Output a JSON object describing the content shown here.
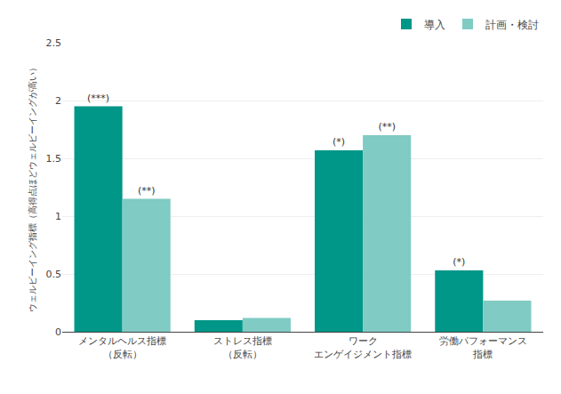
{
  "chart_data": {
    "type": "bar",
    "categories": [
      "メンタルヘルス指標\n（反転）",
      "ストレス指標\n（反転）",
      "ワーク\nエンゲイジメント指標",
      "労働パフォーマンス\n指標"
    ],
    "series": [
      {
        "name": "導入",
        "color": "#009688",
        "values": [
          1.95,
          0.1,
          1.57,
          0.53
        ],
        "annotations": [
          "(***)",
          null,
          "(*)",
          "(*)"
        ]
      },
      {
        "name": "計画・検討",
        "color": "#80CBC4",
        "values": [
          1.15,
          0.12,
          1.7,
          0.27
        ],
        "annotations": [
          "(**)",
          null,
          "(**)",
          null
        ]
      }
    ],
    "y_label": "ウェルビーイング指標（高得点ほどウェルビーイングが高い）",
    "ylim": [
      0,
      2.5
    ],
    "yticks": [
      0,
      0.5,
      1,
      1.5,
      2,
      2.5
    ],
    "grid": true,
    "legend": "upper right"
  }
}
